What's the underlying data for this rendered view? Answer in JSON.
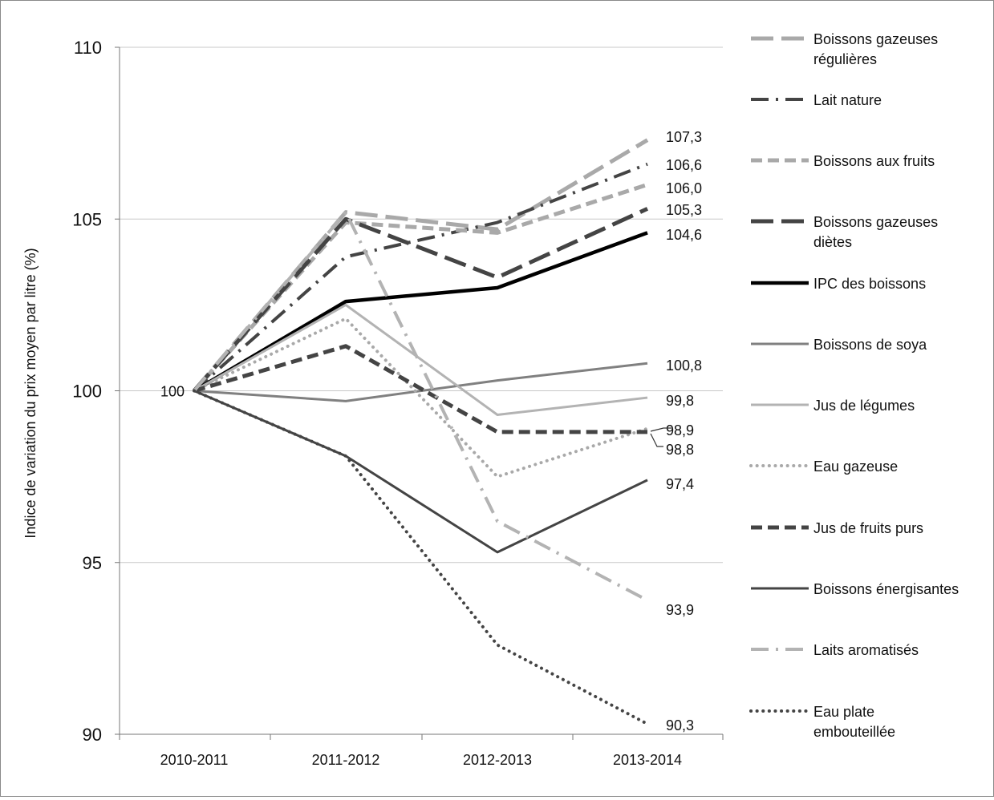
{
  "chart_data": {
    "type": "line",
    "title": "",
    "xlabel": "",
    "ylabel": "Indice de variation du prix moyen par litre (%)",
    "ylim": [
      90,
      110
    ],
    "yticks": [
      90,
      95,
      100,
      105,
      110
    ],
    "grid": true,
    "legend_position": "right",
    "categories": [
      "2010-2011",
      "2011-2012",
      "2012-2013",
      "2013-2014"
    ],
    "start_label": "100",
    "series": [
      {
        "name": "Boissons gazeuses régulières",
        "values": [
          100,
          105.2,
          104.7,
          107.3
        ],
        "end_label": "107,3",
        "color": "#a9a9a9",
        "style": "longdash"
      },
      {
        "name": "Lait nature",
        "values": [
          100,
          103.9,
          104.9,
          106.6
        ],
        "end_label": "106,6",
        "color": "#444444",
        "style": "dashdot"
      },
      {
        "name": "Boissons aux fruits",
        "values": [
          100,
          104.9,
          104.6,
          106.0
        ],
        "end_label": "106,0",
        "color": "#a9a9a9",
        "style": "dash"
      },
      {
        "name": "Boissons gazeuses diètes",
        "values": [
          100,
          105.0,
          103.3,
          105.3
        ],
        "end_label": "105,3",
        "color": "#444444",
        "style": "longdash"
      },
      {
        "name": "IPC des boissons",
        "values": [
          100,
          102.6,
          103.0,
          104.6
        ],
        "end_label": "104,6",
        "color": "#000000",
        "style": "solidbold"
      },
      {
        "name": "Boissons de soya",
        "values": [
          100,
          99.7,
          100.3,
          100.8
        ],
        "end_label": "100,8",
        "color": "#808080",
        "style": "solid"
      },
      {
        "name": "Jus de légumes",
        "values": [
          100,
          102.5,
          99.3,
          99.8
        ],
        "end_label": "99,8",
        "color": "#b3b3b3",
        "style": "solid"
      },
      {
        "name": "Eau gazeuse",
        "values": [
          100,
          102.1,
          97.5,
          98.9
        ],
        "end_label": "98,9",
        "color": "#a9a9a9",
        "style": "dot"
      },
      {
        "name": "Jus de fruits purs",
        "values": [
          100,
          101.3,
          98.8,
          98.8
        ],
        "end_label": "98,8",
        "color": "#444444",
        "style": "dash"
      },
      {
        "name": "Boissons énergisantes",
        "values": [
          100,
          98.1,
          95.3,
          97.4
        ],
        "end_label": "97,4",
        "color": "#444444",
        "style": "solid"
      },
      {
        "name": "Laits aromatisés",
        "values": [
          100,
          105.2,
          96.2,
          93.9
        ],
        "end_label": "93,9",
        "color": "#b3b3b3",
        "style": "dashdot"
      },
      {
        "name": "Eau plate embouteillée",
        "values": [
          100,
          98.1,
          92.6,
          90.3
        ],
        "end_label": "90,3",
        "color": "#444444",
        "style": "dot"
      }
    ]
  }
}
